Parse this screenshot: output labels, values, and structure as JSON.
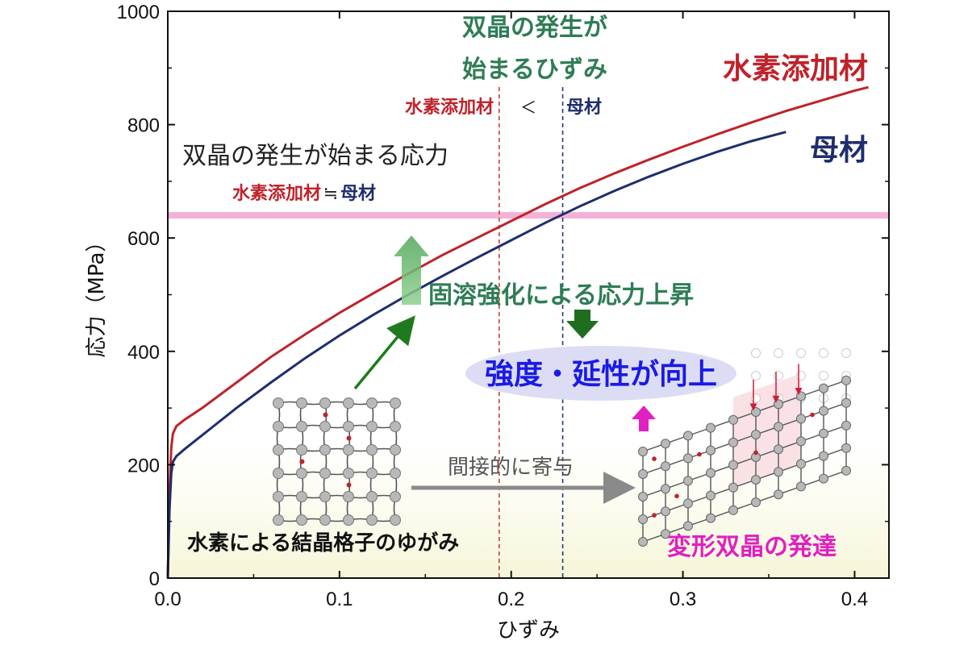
{
  "chart_data": {
    "type": "line",
    "xlabel": "ひずみ",
    "ylabel": "応力（MPa）",
    "xlim": [
      0.0,
      0.42
    ],
    "ylim": [
      0,
      1000
    ],
    "xticks": [
      "0.0",
      "0.1",
      "0.2",
      "0.3",
      "0.4"
    ],
    "yticks": [
      "0",
      "200",
      "400",
      "600",
      "800",
      "1000"
    ],
    "grid": false,
    "series": [
      {
        "name": "水素添加材",
        "color": "#c0222a",
        "x": [
          0,
          0.001,
          0.002,
          0.003,
          0.005,
          0.01,
          0.02,
          0.04,
          0.06,
          0.08,
          0.1,
          0.12,
          0.14,
          0.16,
          0.18,
          0.2,
          0.22,
          0.24,
          0.26,
          0.28,
          0.3,
          0.32,
          0.34,
          0.36,
          0.38,
          0.4,
          0.408
        ],
        "y": [
          0,
          150,
          230,
          255,
          268,
          280,
          300,
          345,
          390,
          430,
          468,
          503,
          537,
          570,
          600,
          630,
          660,
          688,
          714,
          738,
          761,
          783,
          804,
          824,
          842,
          860,
          866
        ]
      },
      {
        "name": "母材",
        "color": "#1e2d6e",
        "x": [
          0,
          0.001,
          0.002,
          0.003,
          0.005,
          0.01,
          0.02,
          0.04,
          0.06,
          0.08,
          0.1,
          0.12,
          0.14,
          0.16,
          0.18,
          0.2,
          0.22,
          0.24,
          0.26,
          0.28,
          0.3,
          0.32,
          0.34,
          0.36
        ],
        "y": [
          0,
          120,
          185,
          205,
          215,
          228,
          252,
          300,
          345,
          388,
          428,
          465,
          500,
          533,
          565,
          596,
          627,
          656,
          683,
          708,
          731,
          752,
          771,
          787
        ]
      }
    ],
    "reference_lines": {
      "twin_stress_y": 640,
      "twin_strain_hydrogen_x": 0.193,
      "twin_strain_base_x": 0.23
    }
  },
  "labels": {
    "series_hydrogen": "水素添加材",
    "series_base": "母材",
    "twin_strain_line1": "双晶の発生が",
    "twin_strain_line2": "始まるひずみ",
    "twin_strain_cmp_left": "水素添加材",
    "twin_strain_cmp_op": "＜",
    "twin_strain_cmp_right": "母材",
    "twin_stress_title": "双晶の発生が始まる応力",
    "twin_stress_cmp_left": "水素添加材",
    "twin_stress_cmp_op": "≒",
    "twin_stress_cmp_right": "母材",
    "solid_solution": "固溶強化による応力上昇",
    "improvement": "強度・延性が向上",
    "indirect": "間接的に寄与",
    "lattice_distortion": "水素による結晶格子のゆがみ",
    "twin_development": "変形双晶の発達"
  },
  "colors": {
    "hydrogen": "#c0222a",
    "base": "#1e2d6e",
    "green_text": "#2e7d55",
    "blue_text": "#1a1ae6",
    "magenta": "#e020c0",
    "pink_band": "#f3a8d3",
    "ellipse": "#dcdcf5"
  }
}
